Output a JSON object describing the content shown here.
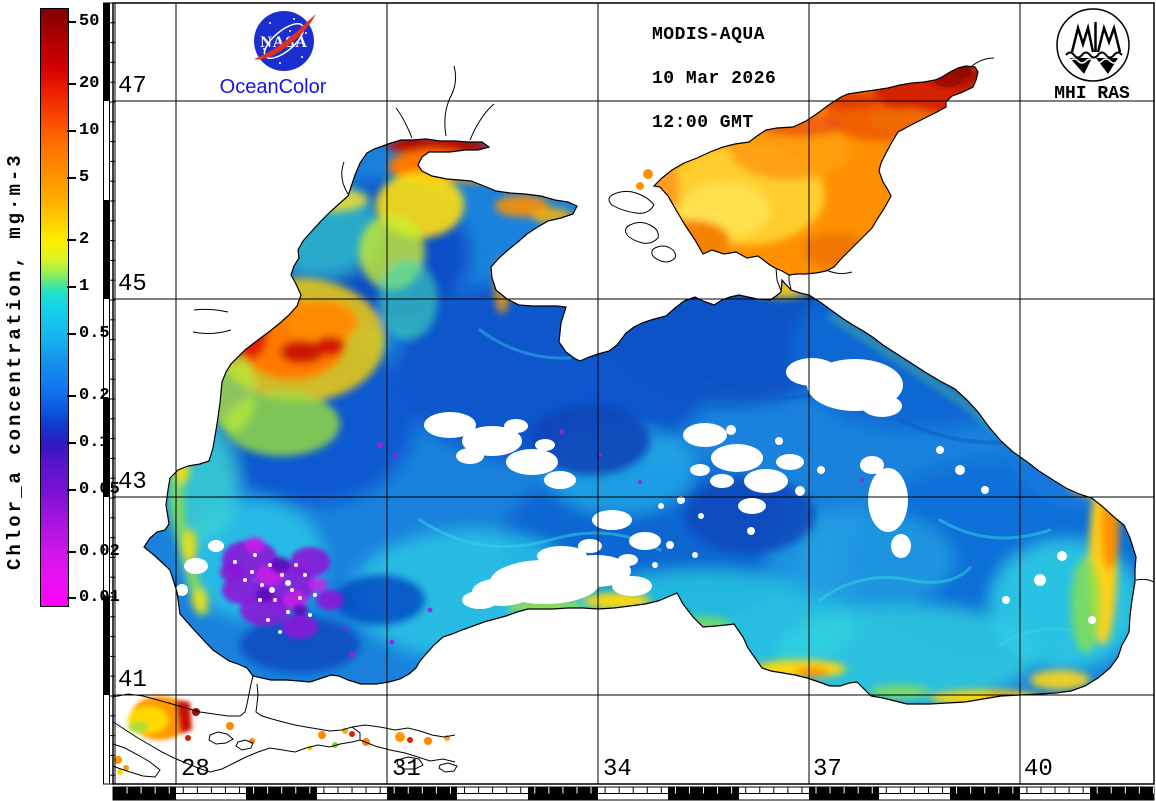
{
  "page": {
    "background": "#ffffff"
  },
  "header": {
    "nasa": {
      "logo_text": "NASA",
      "brand": "OceanColor",
      "logo_blue": "#1b2fd0",
      "swoosh_red": "#e03020",
      "brand_color": "#1814e8"
    },
    "acquisition": {
      "satellite": "MODIS-AQUA",
      "date": "10 Mar 2026",
      "time": "12:00 GMT"
    },
    "institute": {
      "name": "MHI RAS"
    }
  },
  "colorbar": {
    "title": "Chlor_a concentration, mg·m-3",
    "scale_type": "logarithmic",
    "tick_values": [
      "50",
      "20",
      "10",
      "5",
      "2",
      "1",
      "0.5",
      "0.2",
      "0.1",
      "0.05",
      "0.02",
      "0.01"
    ],
    "gradient_top_to_bottom": [
      "#7f0000",
      "#d40000",
      "#ff6a00",
      "#ffd300",
      "#9ff04f",
      "#21e2c8",
      "#18b4f0",
      "#127af0",
      "#1238c8",
      "#5514c8",
      "#a714e0",
      "#ff00ff"
    ]
  },
  "map": {
    "lat_labels": [
      "47",
      "45",
      "43",
      "41"
    ],
    "lon_labels": [
      "28",
      "31",
      "34",
      "37",
      "40"
    ],
    "regions": [
      {
        "name": "Sea of Azov",
        "appearance": "orange, high chlorophyll ~5-20 mg·m-3"
      },
      {
        "name": "Taganrog Bay (NE Azov)",
        "appearance": "dark red, >20 mg·m-3"
      },
      {
        "name": "Danube delta plume",
        "appearance": "red-orange coastal bloom"
      },
      {
        "name": "Dnieper-Bug estuary",
        "appearance": "dark red bloom"
      },
      {
        "name": "Open Black Sea",
        "appearance": "blue-cyan, ~0.2-1 mg·m-3"
      },
      {
        "name": "Southwestern deep-sea patch",
        "appearance": "violet-magenta speckle, ~0.02-0.1 mg·m-3"
      },
      {
        "name": "Sea of Marmara",
        "appearance": "scattered orange-red patches"
      },
      {
        "name": "Clouds / no data",
        "appearance": "white gaps"
      }
    ]
  }
}
